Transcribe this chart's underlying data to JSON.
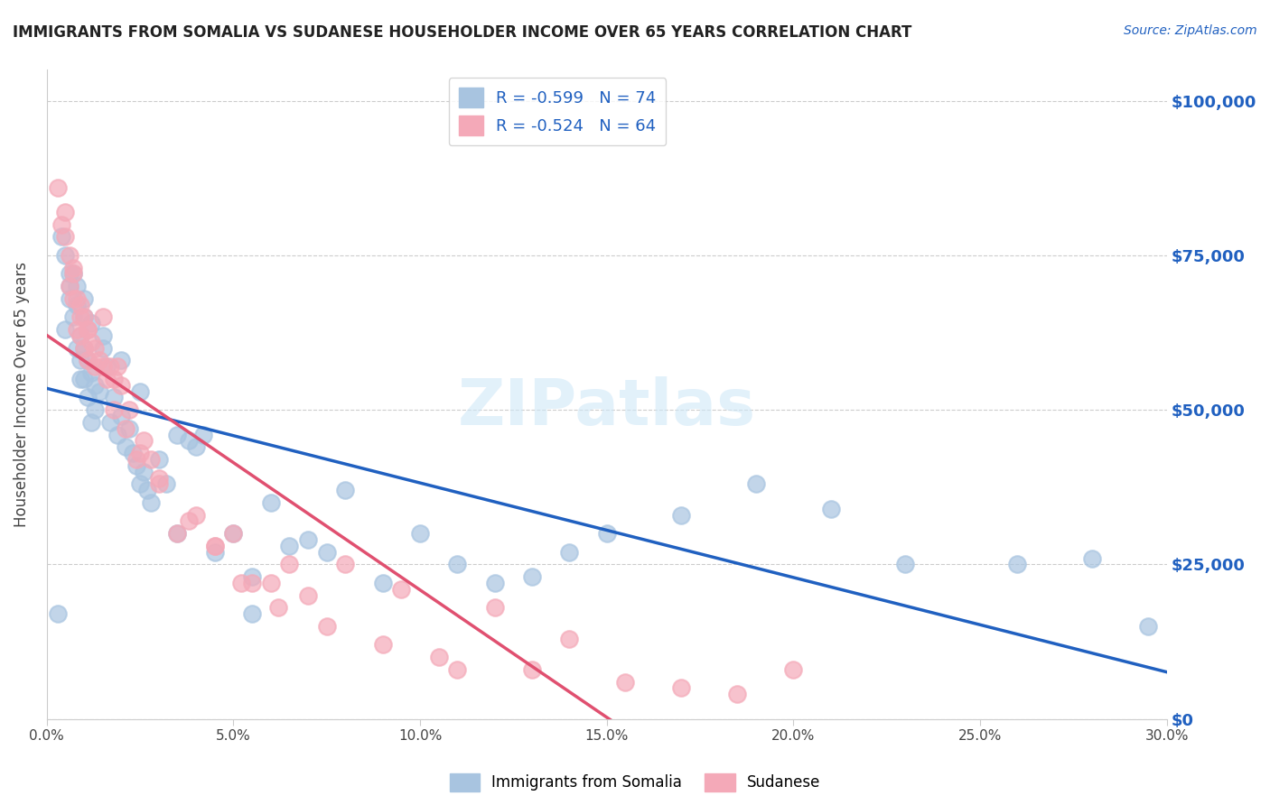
{
  "title": "IMMIGRANTS FROM SOMALIA VS SUDANESE HOUSEHOLDER INCOME OVER 65 YEARS CORRELATION CHART",
  "source": "Source: ZipAtlas.com",
  "ylabel": "Householder Income Over 65 years",
  "xlabel_ticks": [
    "0.0%",
    "5.0%",
    "10.0%",
    "15.0%",
    "20.0%",
    "25.0%",
    "30.0%"
  ],
  "xlabel_vals": [
    0.0,
    5.0,
    10.0,
    15.0,
    20.0,
    25.0,
    30.0
  ],
  "ylabel_ticks": [
    "$0",
    "$25,000",
    "$50,000",
    "$75,000",
    "$100,000"
  ],
  "ylabel_vals": [
    0,
    25000,
    50000,
    75000,
    100000
  ],
  "ylim": [
    0,
    105000
  ],
  "xlim": [
    0.0,
    30.0
  ],
  "somalia_R": -0.599,
  "somalia_N": 74,
  "sudanese_R": -0.524,
  "sudanese_N": 64,
  "somalia_color": "#a8c4e0",
  "sudanese_color": "#f4a9b8",
  "somalia_line_color": "#2060c0",
  "sudanese_line_color": "#e05070",
  "watermark": "ZIPatlas",
  "somalia_x": [
    0.3,
    0.5,
    0.5,
    0.6,
    0.6,
    0.7,
    0.7,
    0.8,
    0.8,
    0.9,
    0.9,
    0.9,
    1.0,
    1.0,
    1.0,
    1.1,
    1.1,
    1.2,
    1.2,
    1.3,
    1.3,
    1.4,
    1.5,
    1.6,
    1.7,
    1.8,
    1.9,
    2.0,
    2.1,
    2.2,
    2.3,
    2.4,
    2.5,
    2.6,
    2.7,
    2.8,
    3.0,
    3.2,
    3.5,
    3.8,
    4.0,
    4.2,
    4.5,
    5.0,
    5.5,
    6.0,
    6.5,
    7.0,
    7.5,
    8.0,
    9.0,
    10.0,
    11.0,
    12.0,
    13.0,
    14.0,
    15.0,
    17.0,
    19.0,
    21.0,
    23.0,
    26.0,
    28.0,
    29.5,
    0.4,
    0.6,
    0.8,
    1.0,
    1.2,
    1.5,
    2.0,
    2.5,
    3.5,
    5.5
  ],
  "somalia_y": [
    17000,
    75000,
    63000,
    70000,
    68000,
    72000,
    65000,
    67000,
    60000,
    62000,
    58000,
    55000,
    65000,
    60000,
    55000,
    58000,
    52000,
    56000,
    48000,
    54000,
    50000,
    53000,
    60000,
    57000,
    48000,
    52000,
    46000,
    49000,
    44000,
    47000,
    43000,
    41000,
    38000,
    40000,
    37000,
    35000,
    42000,
    38000,
    46000,
    45000,
    44000,
    46000,
    27000,
    30000,
    23000,
    35000,
    28000,
    29000,
    27000,
    37000,
    22000,
    30000,
    25000,
    22000,
    23000,
    27000,
    30000,
    33000,
    38000,
    34000,
    25000,
    25000,
    26000,
    15000,
    78000,
    72000,
    70000,
    68000,
    64000,
    62000,
    58000,
    53000,
    30000,
    17000
  ],
  "sudanese_x": [
    0.3,
    0.4,
    0.5,
    0.6,
    0.6,
    0.7,
    0.7,
    0.8,
    0.8,
    0.9,
    0.9,
    1.0,
    1.0,
    1.1,
    1.1,
    1.2,
    1.3,
    1.4,
    1.5,
    1.6,
    1.7,
    1.8,
    1.9,
    2.0,
    2.2,
    2.4,
    2.6,
    2.8,
    3.0,
    3.5,
    4.0,
    4.5,
    5.0,
    5.5,
    6.0,
    6.5,
    7.0,
    8.0,
    9.5,
    11.0,
    12.0,
    14.0,
    17.0,
    20.0,
    0.5,
    0.7,
    0.9,
    1.1,
    1.3,
    1.5,
    1.8,
    2.1,
    2.5,
    3.0,
    3.8,
    4.5,
    5.2,
    6.2,
    7.5,
    9.0,
    10.5,
    13.0,
    15.5,
    18.5
  ],
  "sudanese_y": [
    86000,
    80000,
    78000,
    75000,
    70000,
    73000,
    68000,
    68000,
    63000,
    67000,
    62000,
    65000,
    60000,
    63000,
    58000,
    61000,
    57000,
    58000,
    65000,
    55000,
    57000,
    55000,
    57000,
    54000,
    50000,
    42000,
    45000,
    42000,
    38000,
    30000,
    33000,
    28000,
    30000,
    22000,
    22000,
    25000,
    20000,
    25000,
    21000,
    8000,
    18000,
    13000,
    5000,
    8000,
    82000,
    72000,
    65000,
    63000,
    60000,
    57000,
    50000,
    47000,
    43000,
    39000,
    32000,
    28000,
    22000,
    18000,
    15000,
    12000,
    10000,
    8000,
    6000,
    4000
  ]
}
